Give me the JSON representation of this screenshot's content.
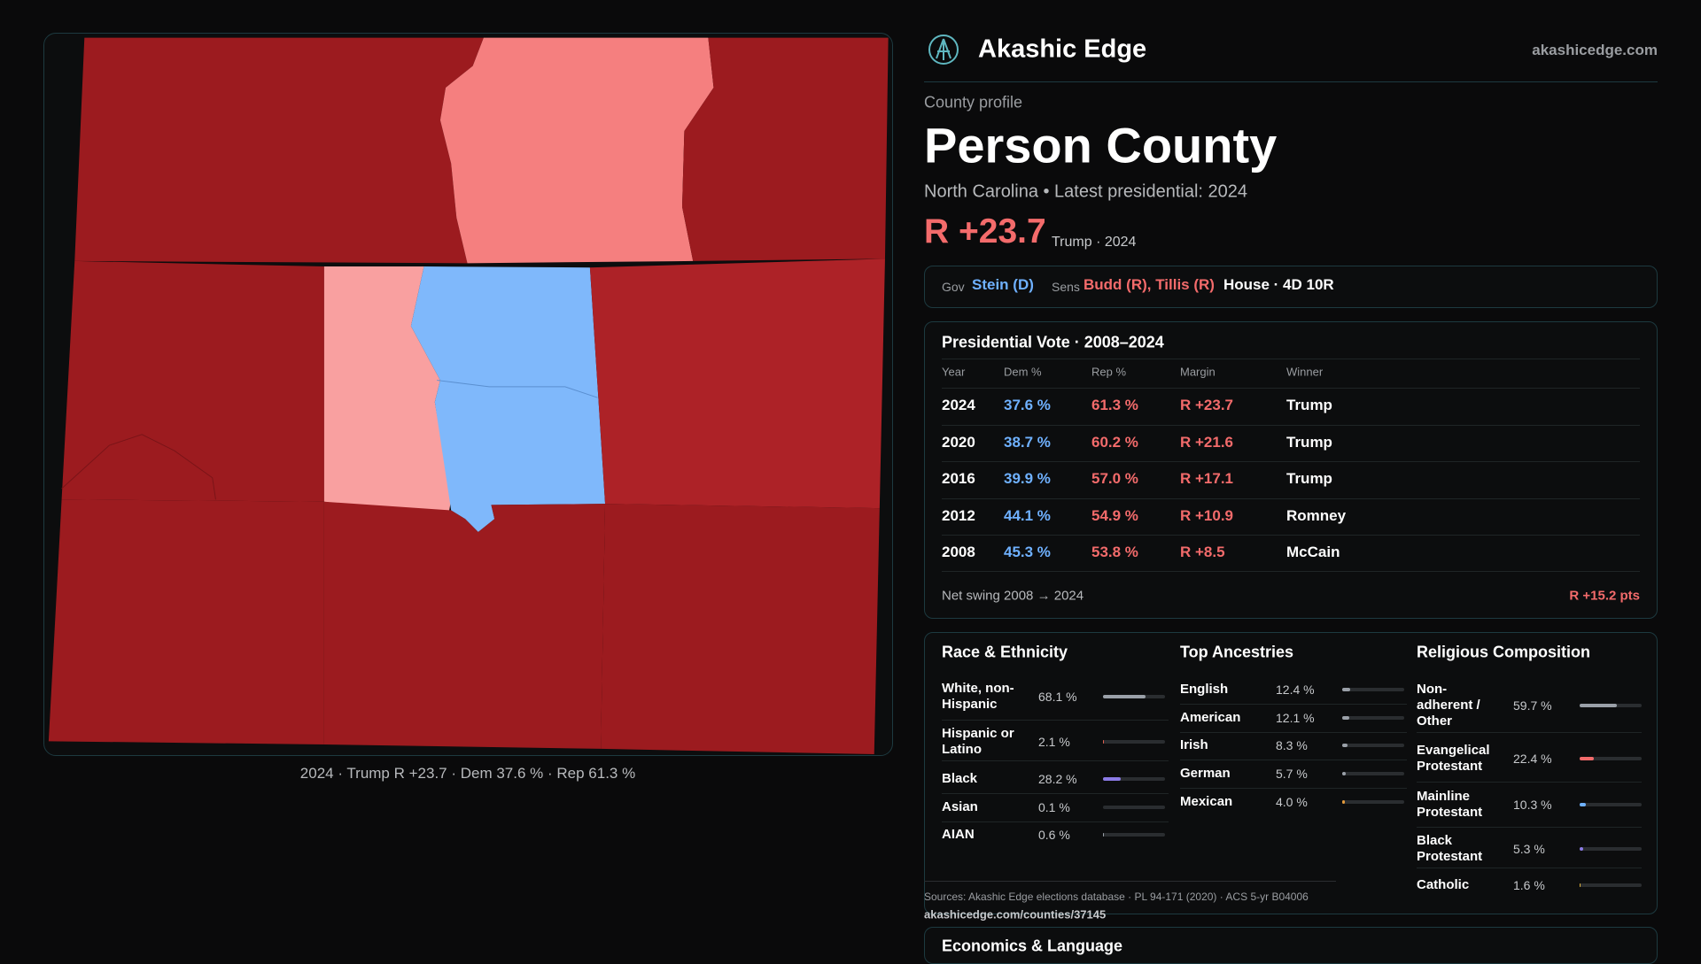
{
  "header": {
    "brand": "Akashic Edge",
    "site": "akashicedge.com"
  },
  "map": {
    "caption": "2024 · Trump R +23.7 · Dem 37.6 % · Rep 61.3 %"
  },
  "profile": {
    "label": "County profile",
    "name": "Person County",
    "subtitle": "North Carolina • Latest presidential: 2024",
    "margin": "R +23.7",
    "margin_note": "Trump · 2024"
  },
  "officials": {
    "gov_label": "Gov",
    "gov": "Stein (D)",
    "sens_label": "Sens",
    "sens": "Budd (R), Tillis (R)",
    "house": "House · 4D 10R"
  },
  "votes": {
    "title": "Presidential Vote · 2008–2024",
    "columns": [
      "Year",
      "Dem %",
      "Rep %",
      "Margin",
      "Winner"
    ],
    "rows": [
      [
        "2024",
        "37.6 %",
        "61.3 %",
        "R +23.7",
        "Trump"
      ],
      [
        "2020",
        "38.7 %",
        "60.2 %",
        "R +21.6",
        "Trump"
      ],
      [
        "2016",
        "39.9 %",
        "57.0 %",
        "R +17.1",
        "Trump"
      ],
      [
        "2012",
        "44.1 %",
        "54.9 %",
        "R +10.9",
        "Romney"
      ],
      [
        "2008",
        "45.3 %",
        "53.8 %",
        "R +8.5",
        "McCain"
      ]
    ],
    "swing_label": "Net swing 2008 → 2024",
    "swing": "R +15.2 pts"
  },
  "race": {
    "title": "Race & Ethnicity",
    "rows": [
      {
        "name": "White, non-Hispanic",
        "value": 68.1,
        "label": "68.1 %",
        "color": "#9aa0a8"
      },
      {
        "name": "Hispanic or Latino",
        "value": 2.1,
        "label": "2.1 %",
        "color": "#e0604f"
      },
      {
        "name": "Black",
        "value": 28.2,
        "label": "28.2 %",
        "color": "#8b7be6"
      },
      {
        "name": "Asian",
        "value": 0.1,
        "label": "0.1 %",
        "color": "#6fb1ff"
      },
      {
        "name": "AIAN",
        "value": 0.6,
        "label": "0.6 %",
        "color": "#9aa0a8"
      }
    ]
  },
  "ancestries": {
    "title": "Top Ancestries",
    "rows": [
      {
        "name": "English",
        "value": 12.4,
        "label": "12.4 %",
        "color": "#9aa0a8"
      },
      {
        "name": "American",
        "value": 12.1,
        "label": "12.1 %",
        "color": "#9aa0a8"
      },
      {
        "name": "Irish",
        "value": 8.3,
        "label": "8.3 %",
        "color": "#9aa0a8"
      },
      {
        "name": "German",
        "value": 5.7,
        "label": "5.7 %",
        "color": "#9aa0a8"
      },
      {
        "name": "Mexican",
        "value": 4.0,
        "label": "4.0 %",
        "color": "#e39a3b"
      }
    ]
  },
  "religion": {
    "title": "Religious Composition",
    "rows": [
      {
        "name": "Non-adherent / Other",
        "value": 59.7,
        "label": "59.7 %",
        "color": "#9aa0a8"
      },
      {
        "name": "Evangelical Protestant",
        "value": 22.4,
        "label": "22.4 %",
        "color": "#f36b6b"
      },
      {
        "name": "Mainline Protestant",
        "value": 10.3,
        "label": "10.3 %",
        "color": "#6fb1ff"
      },
      {
        "name": "Black Protestant",
        "value": 5.3,
        "label": "5.3 %",
        "color": "#8b7be6"
      },
      {
        "name": "Catholic",
        "value": 1.6,
        "label": "1.6 %",
        "color": "#e0b23b"
      }
    ]
  },
  "sources": "Sources: Akashic Edge elections database · PL 94-171 (2020) · ACS 5-yr B04006",
  "url": "akashicedge.com/counties/37145",
  "economics": {
    "title": "Economics & Language"
  }
}
